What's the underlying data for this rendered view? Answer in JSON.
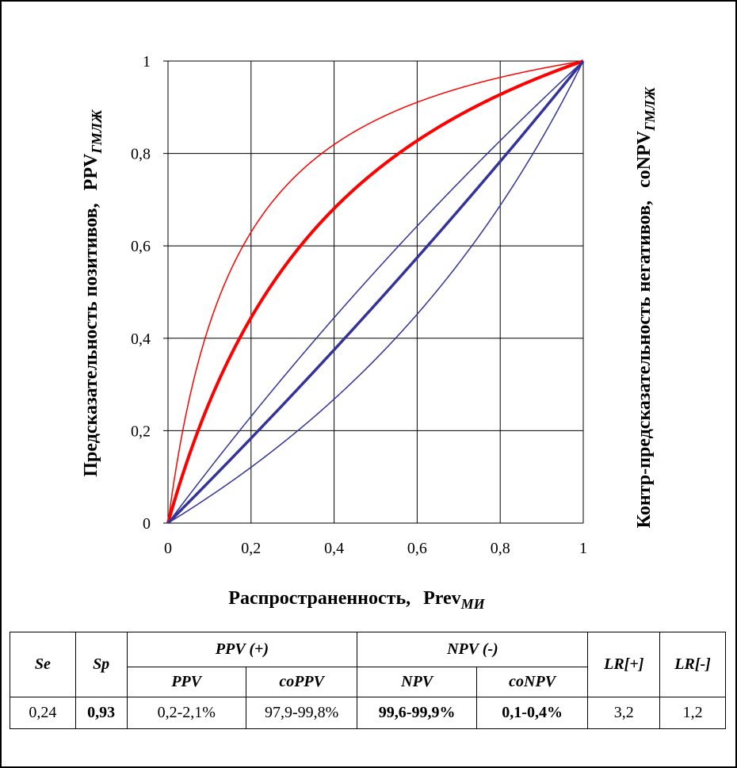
{
  "chart_data": {
    "type": "line",
    "xlabel": "Распространенность,",
    "xlabel_sub": "Prev",
    "xlabel_subscript": "МИ",
    "ylabel_left": "Предсказательность позитивов,",
    "ylabel_left_sub": "PPV",
    "ylabel_left_subscript": "ГМЛЖ",
    "ylabel_right": "Контр-предсказательность негативов,",
    "ylabel_right_sub": "coNPV",
    "ylabel_right_subscript": "ГМЛЖ",
    "xlim": [
      0,
      1
    ],
    "ylim": [
      0,
      1
    ],
    "x_ticks": [
      "0",
      "0,2",
      "0,4",
      "0,6",
      "0,8",
      "1"
    ],
    "y_ticks": [
      "0",
      "0,2",
      "0,4",
      "0,6",
      "0,8",
      "1"
    ],
    "grid": true,
    "series": [
      {
        "color": "#ff0000",
        "width": 1.5,
        "lr": 6.8
      },
      {
        "color": "#ff0000",
        "width": 4,
        "lr": 3.2
      },
      {
        "color": "#333399",
        "width": 1.5,
        "lr": 1.2
      },
      {
        "color": "#333399",
        "width": 3.5,
        "lr": 0.9
      },
      {
        "color": "#333399",
        "width": 1.5,
        "lr": 0.55
      }
    ]
  },
  "table": {
    "headers": {
      "se": "Se",
      "sp": "Sp",
      "ppv_group": "PPV (+)",
      "npv_group": "NPV (-)",
      "lr_pos": "LR[+]",
      "lr_neg": "LR[-]",
      "ppv": "PPV",
      "coppv": "coPPV",
      "npv": "NPV",
      "conpv": "coNPV"
    },
    "values": {
      "se": "0,24",
      "sp": "0,93",
      "ppv": "0,2-2,1%",
      "coppv": "97,9-99,8%",
      "npv": "99,6-99,9%",
      "conpv": "0,1-0,4%",
      "lr_pos": "3,2",
      "lr_neg": "1,2"
    }
  }
}
